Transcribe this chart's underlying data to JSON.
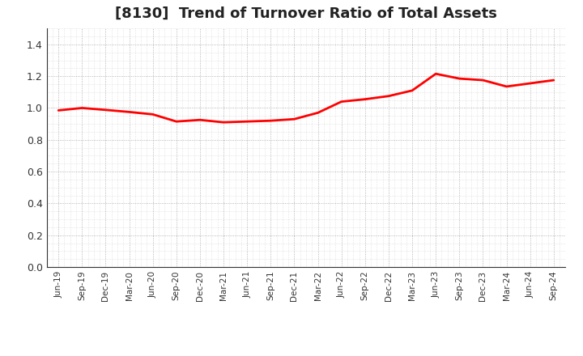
{
  "title": "[8130]  Trend of Turnover Ratio of Total Assets",
  "title_fontsize": 13,
  "line_color": "#FF0000",
  "line_width": 2.0,
  "background_color": "#FFFFFF",
  "grid_color": "#999999",
  "ylim": [
    0.0,
    1.5
  ],
  "yticks": [
    0.0,
    0.2,
    0.4,
    0.6,
    0.8,
    1.0,
    1.2,
    1.4
  ],
  "x_labels": [
    "Jun-19",
    "Sep-19",
    "Dec-19",
    "Mar-20",
    "Jun-20",
    "Sep-20",
    "Dec-20",
    "Mar-21",
    "Jun-21",
    "Sep-21",
    "Dec-21",
    "Mar-22",
    "Jun-22",
    "Sep-22",
    "Dec-22",
    "Mar-23",
    "Jun-23",
    "Sep-23",
    "Dec-23",
    "Mar-24",
    "Jun-24",
    "Sep-24"
  ],
  "y_values": [
    0.985,
    1.0,
    0.988,
    0.975,
    0.96,
    0.915,
    0.925,
    0.91,
    0.915,
    0.92,
    0.93,
    0.97,
    1.04,
    1.055,
    1.075,
    1.11,
    1.215,
    1.185,
    1.175,
    1.135,
    1.155,
    1.175
  ]
}
